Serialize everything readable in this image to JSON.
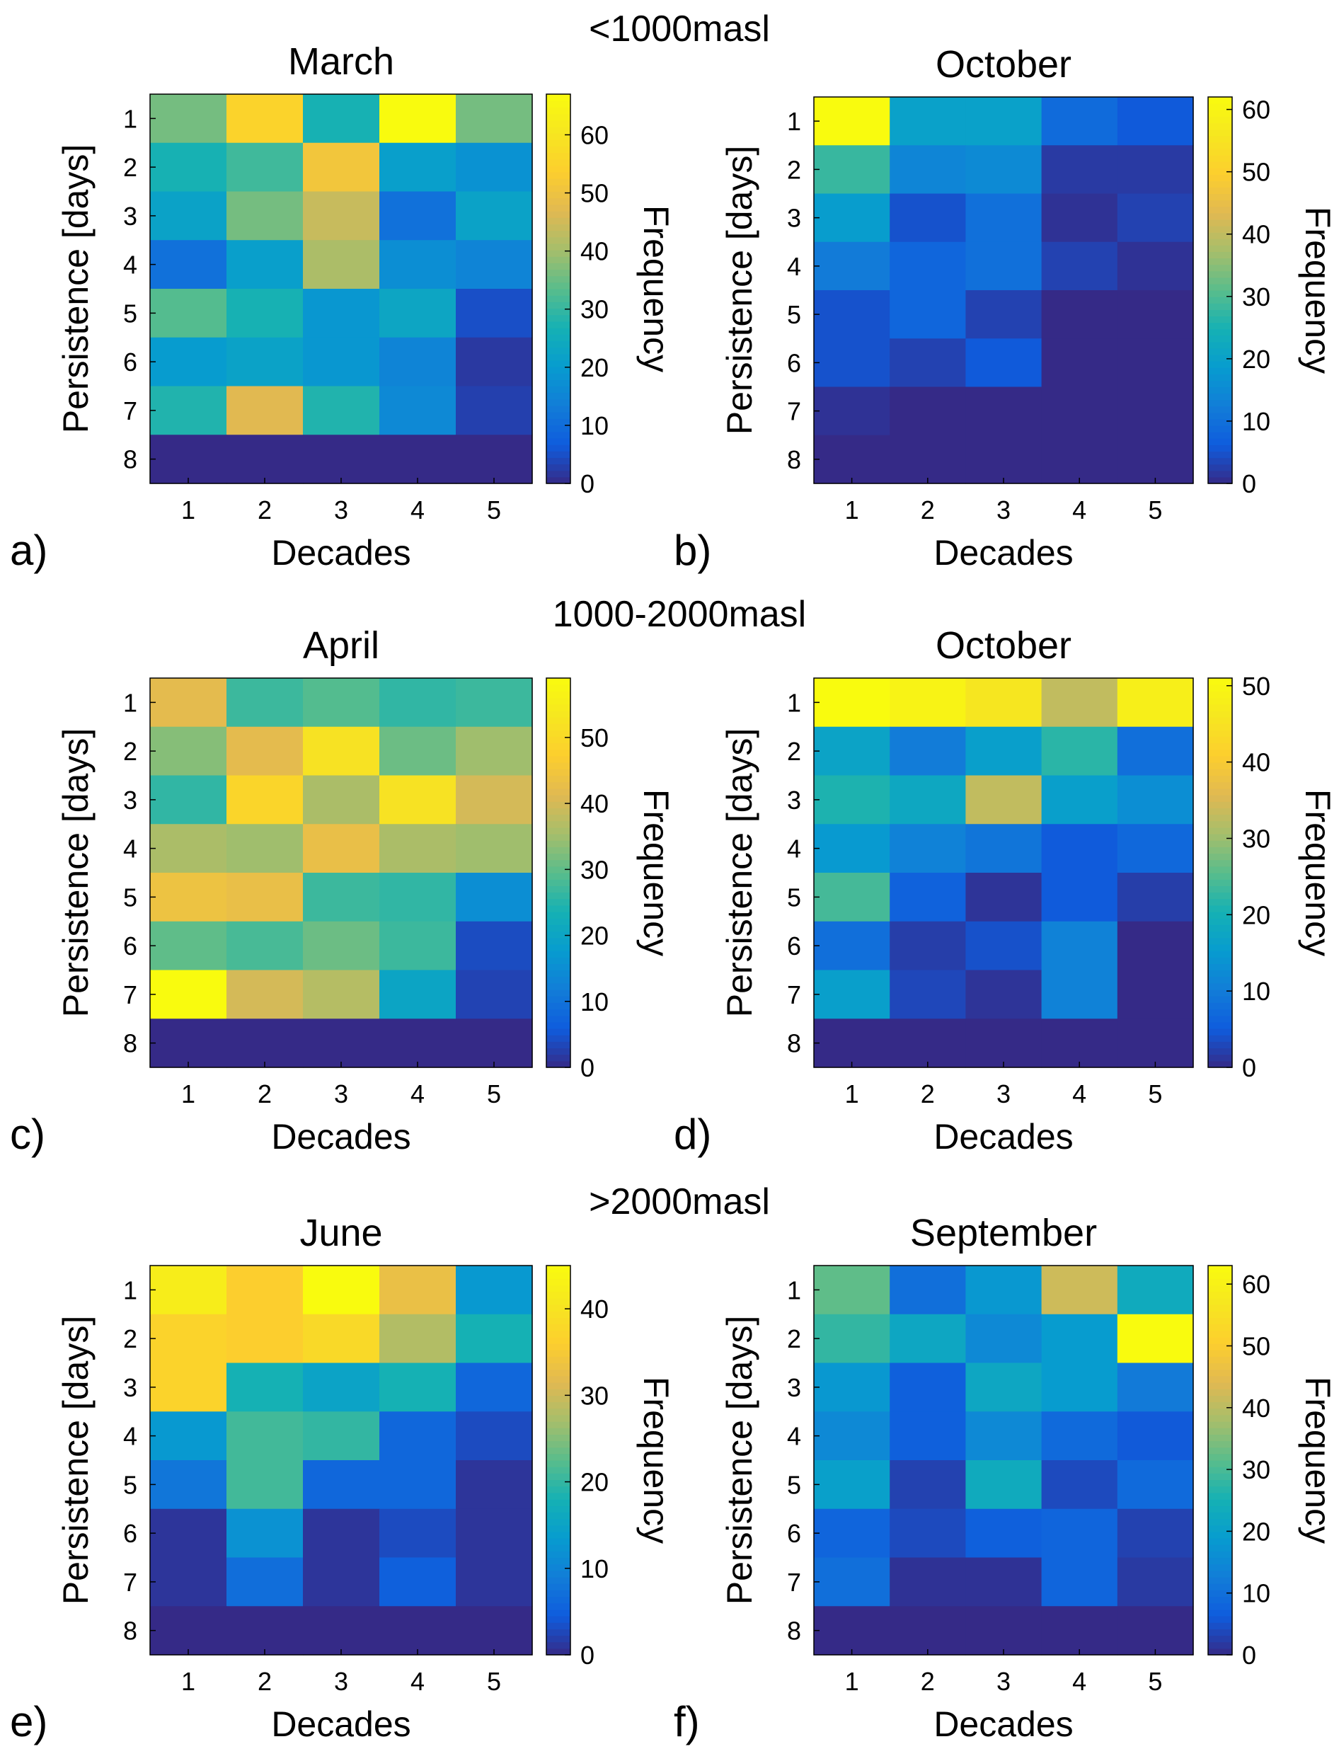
{
  "figure": {
    "groups": [
      "<1000masl",
      "1000-2000masl",
      ">2000masl"
    ]
  },
  "chart_data": [
    {
      "type": "heatmap",
      "panel": "a)",
      "title": "March",
      "group": "<1000masl",
      "xlabel": "Decades",
      "ylabel": "Persistence [days]",
      "colorbar_label": "Frequency",
      "x": [
        1,
        2,
        3,
        4,
        5
      ],
      "y": [
        1,
        2,
        3,
        4,
        5,
        6,
        7,
        8
      ],
      "clim": [
        0,
        67
      ],
      "colorbar_ticks": [
        0,
        10,
        20,
        30,
        40,
        50,
        60
      ],
      "z": [
        [
          36,
          55,
          27,
          67,
          36
        ],
        [
          27,
          31,
          51,
          21,
          18
        ],
        [
          22,
          36,
          44,
          11,
          22
        ],
        [
          11,
          21,
          41,
          17,
          15
        ],
        [
          33,
          27,
          19,
          23,
          5
        ],
        [
          20,
          22,
          19,
          15,
          2
        ],
        [
          28,
          47,
          28,
          16,
          3
        ],
        [
          0,
          0,
          0,
          0,
          0
        ]
      ]
    },
    {
      "type": "heatmap",
      "panel": "b)",
      "title": "October",
      "group": "<1000masl",
      "xlabel": "Decades",
      "ylabel": "Persistence [days]",
      "colorbar_label": "Frequency",
      "x": [
        1,
        2,
        3,
        4,
        5
      ],
      "y": [
        1,
        2,
        3,
        4,
        5,
        6,
        7,
        8
      ],
      "clim": [
        0,
        62
      ],
      "colorbar_ticks": [
        0,
        10,
        20,
        30,
        40,
        50,
        60
      ],
      "z": [
        [
          62,
          20,
          20,
          9,
          6
        ],
        [
          28,
          14,
          15,
          2,
          2
        ],
        [
          19,
          5,
          10,
          1,
          3
        ],
        [
          12,
          8,
          10,
          3,
          1
        ],
        [
          5,
          8,
          3,
          0,
          0
        ],
        [
          5,
          3,
          6,
          0,
          0
        ],
        [
          1,
          0,
          0,
          0,
          0
        ],
        [
          0,
          0,
          0,
          0,
          0
        ]
      ]
    },
    {
      "type": "heatmap",
      "panel": "c)",
      "title": "April",
      "group": "1000-2000masl",
      "xlabel": "Decades",
      "ylabel": "Persistence [days]",
      "colorbar_label": "Frequency",
      "x": [
        1,
        2,
        3,
        4,
        5
      ],
      "y": [
        1,
        2,
        3,
        4,
        5,
        6,
        7,
        8
      ],
      "clim": [
        0,
        59
      ],
      "colorbar_ticks": [
        0,
        10,
        20,
        30,
        40,
        50
      ],
      "z": [
        [
          42,
          27,
          29,
          26,
          27
        ],
        [
          33,
          42,
          52,
          31,
          35
        ],
        [
          26,
          49,
          36,
          52,
          40
        ],
        [
          36,
          35,
          43,
          36,
          35
        ],
        [
          44,
          43,
          27,
          26,
          15
        ],
        [
          30,
          28,
          31,
          27,
          4
        ],
        [
          59,
          40,
          37,
          20,
          3
        ],
        [
          0,
          0,
          0,
          0,
          0
        ]
      ]
    },
    {
      "type": "heatmap",
      "panel": "d)",
      "title": "October",
      "group": "1000-2000masl",
      "xlabel": "Decades",
      "ylabel": "Persistence [days]",
      "colorbar_label": "Frequency",
      "x": [
        1,
        2,
        3,
        4,
        5
      ],
      "y": [
        1,
        2,
        3,
        4,
        5,
        6,
        7,
        8
      ],
      "clim": [
        0,
        51
      ],
      "colorbar_ticks": [
        0,
        10,
        20,
        30,
        40,
        50
      ],
      "z": [
        [
          51,
          49,
          46,
          33,
          48
        ],
        [
          17,
          10,
          16,
          22,
          8
        ],
        [
          21,
          18,
          33,
          16,
          13
        ],
        [
          15,
          11,
          9,
          5,
          7
        ],
        [
          24,
          6,
          1,
          5,
          2
        ],
        [
          8,
          2,
          4,
          11,
          0
        ],
        [
          16,
          3,
          1,
          11,
          0
        ],
        [
          0,
          0,
          0,
          0,
          0
        ]
      ]
    },
    {
      "type": "heatmap",
      "panel": "e)",
      "title": "June",
      "group": ">2000masl",
      "xlabel": "Decades",
      "ylabel": "Persistence [days]",
      "colorbar_label": "Frequency",
      "x": [
        1,
        2,
        3,
        4,
        5
      ],
      "y": [
        1,
        2,
        3,
        4,
        5,
        6,
        7,
        8
      ],
      "clim": [
        0,
        45
      ],
      "colorbar_ticks": [
        0,
        10,
        20,
        30,
        40
      ],
      "z": [
        [
          42,
          36,
          45,
          33,
          13
        ],
        [
          37,
          36,
          38,
          28,
          18
        ],
        [
          37,
          18,
          15,
          18,
          6
        ],
        [
          13,
          21,
          20,
          6,
          3
        ],
        [
          8,
          21,
          6,
          6,
          1
        ],
        [
          1,
          12,
          1,
          3,
          1
        ],
        [
          1,
          7,
          1,
          5,
          1
        ],
        [
          0,
          0,
          0,
          0,
          0
        ]
      ]
    },
    {
      "type": "heatmap",
      "panel": "f)",
      "title": "September",
      "group": ">2000masl",
      "xlabel": "Decades",
      "ylabel": "Persistence [days]",
      "colorbar_label": "Frequency",
      "x": [
        1,
        2,
        3,
        4,
        5
      ],
      "y": [
        1,
        2,
        3,
        4,
        5,
        6,
        7,
        8
      ],
      "clim": [
        0,
        63
      ],
      "colorbar_ticks": [
        0,
        10,
        20,
        30,
        40,
        50,
        60
      ],
      "z": [
        [
          32,
          10,
          18,
          42,
          23
        ],
        [
          28,
          22,
          15,
          19,
          63
        ],
        [
          18,
          7,
          22,
          19,
          12
        ],
        [
          15,
          7,
          15,
          9,
          6
        ],
        [
          20,
          3,
          23,
          4,
          9
        ],
        [
          8,
          4,
          7,
          8,
          3
        ],
        [
          10,
          1,
          1,
          8,
          2
        ],
        [
          0,
          0,
          0,
          0,
          0
        ]
      ]
    }
  ]
}
